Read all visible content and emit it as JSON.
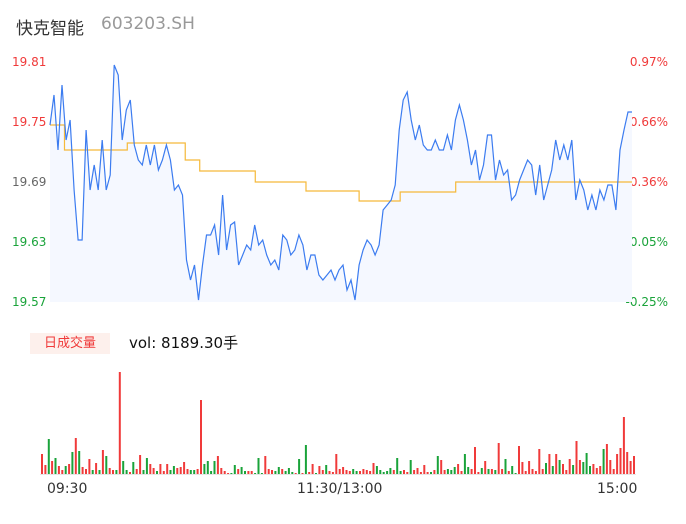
{
  "header": {
    "name": "快克智能",
    "code": "603203.SH"
  },
  "colors": {
    "up": "#f03a3a",
    "down": "#1aa33a",
    "price_line": "#3c7cf0",
    "avg_line": "#f5b93a",
    "area": "#f5f8ff"
  },
  "volume_badge": "日成交量",
  "volume_readout": "vol: 8189.30手",
  "chart_data": {
    "type": "line",
    "title": "快克智能 603203.SH intraday",
    "prev_close": 19.62,
    "ylim": [
      19.57,
      19.81
    ],
    "y_ticks_left": [
      "19.81",
      "19.75",
      "19.69",
      "19.63",
      "19.57"
    ],
    "y_ticks_right": [
      "0.97%",
      "0.66%",
      "0.36%",
      "0.05%",
      "-0.25%"
    ],
    "x_ticks": [
      "09:30",
      "11:30/13:00",
      "15:00"
    ],
    "session_minutes": 241,
    "price": [
      19.747,
      19.777,
      19.722,
      19.787,
      19.732,
      19.752,
      19.682,
      19.632,
      19.632,
      19.742,
      19.682,
      19.707,
      19.682,
      19.732,
      19.682,
      19.697,
      19.807,
      19.797,
      19.732,
      19.762,
      19.772,
      19.727,
      19.712,
      19.707,
      19.727,
      19.707,
      19.727,
      19.702,
      19.712,
      19.727,
      19.712,
      19.682,
      19.687,
      19.677,
      19.612,
      19.592,
      19.607,
      19.572,
      19.607,
      19.637,
      19.637,
      19.647,
      19.617,
      19.677,
      19.622,
      19.647,
      19.65,
      19.607,
      19.617,
      19.627,
      19.622,
      19.647,
      19.627,
      19.632,
      19.617,
      19.607,
      19.612,
      19.602,
      19.637,
      19.632,
      19.617,
      19.622,
      19.637,
      19.627,
      19.602,
      19.617,
      19.617,
      19.597,
      19.592,
      19.597,
      19.602,
      19.592,
      19.602,
      19.607,
      19.582,
      19.592,
      19.572,
      19.607,
      19.622,
      19.632,
      19.627,
      19.617,
      19.627,
      19.662,
      19.667,
      19.672,
      19.687,
      19.742,
      19.772,
      19.78,
      19.752,
      19.732,
      19.747,
      19.727,
      19.722,
      19.722,
      19.732,
      19.722,
      19.722,
      19.737,
      19.722,
      19.752,
      19.767,
      19.752,
      19.732,
      19.707,
      19.722,
      19.692,
      19.707,
      19.737,
      19.737,
      19.692,
      19.712,
      19.697,
      19.702,
      19.672,
      19.677,
      19.692,
      19.702,
      19.712,
      19.707,
      19.677,
      19.707,
      19.672,
      19.687,
      19.702,
      19.732,
      19.712,
      19.727,
      19.712,
      19.732,
      19.672,
      19.692,
      19.682,
      19.662,
      19.677,
      19.662,
      19.682,
      19.672,
      19.687,
      19.687,
      19.662,
      19.722,
      19.742,
      19.76,
      19.76
    ],
    "avg": [
      [
        0,
        19.747
      ],
      [
        6,
        19.722
      ],
      [
        32,
        19.729
      ],
      [
        56,
        19.712
      ],
      [
        62,
        19.701
      ],
      [
        85,
        19.69
      ],
      [
        106,
        19.681
      ],
      [
        128,
        19.671
      ],
      [
        145,
        19.68
      ],
      [
        168,
        19.69
      ],
      [
        241,
        19.69
      ]
    ],
    "volume": [
      20,
      9,
      35,
      13,
      16,
      8,
      4,
      8,
      10,
      22,
      36,
      23,
      7,
      5,
      15,
      4,
      11,
      4,
      24,
      18,
      6,
      4,
      4,
      102,
      13,
      4,
      2,
      12,
      5,
      19,
      4,
      16,
      10,
      6,
      3,
      10,
      3,
      10,
      4,
      8,
      6,
      7,
      12,
      5,
      4,
      4,
      5,
      74,
      10,
      13,
      3,
      13,
      18,
      6,
      3,
      1,
      1,
      9,
      5,
      7,
      3,
      3,
      3,
      1,
      16,
      1,
      18,
      5,
      4,
      3,
      7,
      5,
      3,
      6,
      2,
      1,
      15,
      1,
      29,
      2,
      10,
      1,
      8,
      4,
      9,
      3,
      2,
      20,
      5,
      7,
      4,
      3,
      5,
      3,
      3,
      5,
      4,
      3,
      11,
      8,
      4,
      2,
      3,
      6,
      4,
      16,
      3,
      4,
      2,
      14,
      4,
      6,
      2,
      9,
      2,
      2,
      4,
      18,
      14,
      4,
      5,
      4,
      7,
      10,
      3,
      20,
      7,
      5,
      27,
      2,
      6,
      13,
      5,
      5,
      4,
      31,
      5,
      15,
      3,
      8,
      1,
      28,
      12,
      3,
      13,
      5,
      3,
      25,
      5,
      11,
      20,
      8,
      20,
      14,
      10,
      4,
      15,
      9,
      33,
      14,
      12,
      21,
      8,
      10,
      6,
      8,
      25,
      30,
      14,
      5,
      20,
      26,
      57,
      22,
      13,
      18
    ],
    "volume_dir": "rrgrgrrgrgrgrrrgrgrgrrgrggrgrrggrrgrrrggrrrrggrrggggrrrrggrggrrgggrrrggrgggrgrgrrgrrgrrrrrrrggrrrrrgggggrggrrgrrrrrgrgrrgggrrggrrrgrgrgrrgrggrrrrrrrrgrgrgrrrgrrgggrrrgr"
  }
}
